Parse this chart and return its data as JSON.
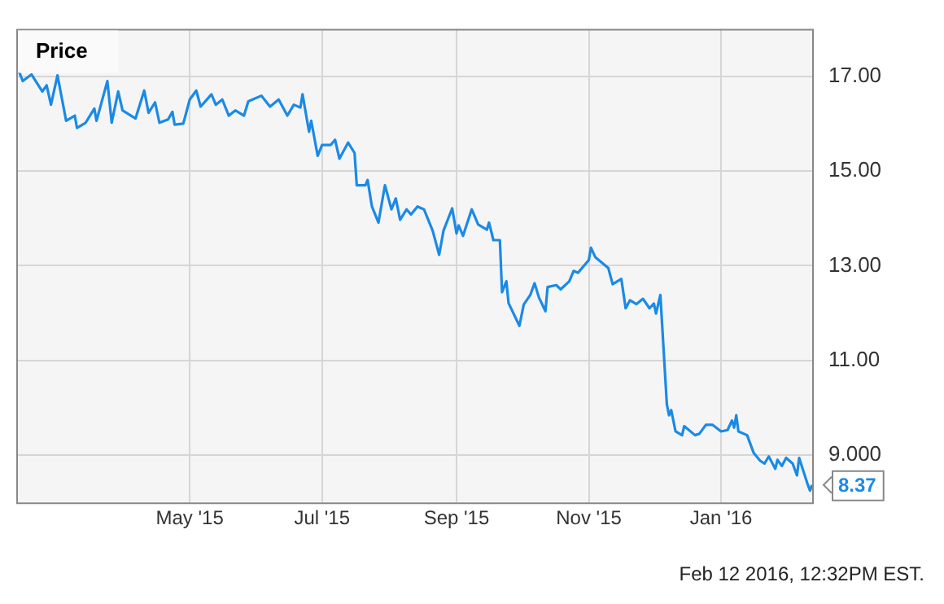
{
  "chart_data": {
    "type": "line",
    "title": "Price",
    "x": [
      "2015-02-11",
      "2015-02-13",
      "2015-02-17",
      "2015-02-22",
      "2015-02-24",
      "2015-02-26",
      "2015-03-01",
      "2015-03-05",
      "2015-03-09",
      "2015-03-10",
      "2015-03-14",
      "2015-03-18",
      "2015-03-19",
      "2015-03-24",
      "2015-03-26",
      "2015-03-29",
      "2015-03-31",
      "2015-04-06",
      "2015-04-10",
      "2015-04-12",
      "2015-04-15",
      "2015-04-17",
      "2015-04-21",
      "2015-04-23",
      "2015-04-24",
      "2015-04-28",
      "2015-05-01",
      "2015-05-04",
      "2015-05-06",
      "2015-05-11",
      "2015-05-13",
      "2015-05-16",
      "2015-05-19",
      "2015-05-22",
      "2015-05-26",
      "2015-05-28",
      "2015-06-03",
      "2015-06-07",
      "2015-06-11",
      "2015-06-15",
      "2015-06-18",
      "2015-06-21",
      "2015-06-22",
      "2015-06-25",
      "2015-06-26",
      "2015-06-29",
      "2015-07-01",
      "2015-07-05",
      "2015-07-07",
      "2015-07-09",
      "2015-07-13",
      "2015-07-16",
      "2015-07-17",
      "2015-07-21",
      "2015-07-22",
      "2015-07-24",
      "2015-07-27",
      "2015-07-30",
      "2015-08-02",
      "2015-08-04",
      "2015-08-06",
      "2015-08-09",
      "2015-08-11",
      "2015-08-14",
      "2015-08-17",
      "2015-08-21",
      "2015-08-24",
      "2015-08-26",
      "2015-08-30",
      "2015-09-01",
      "2015-09-02",
      "2015-09-04",
      "2015-09-08",
      "2015-09-11",
      "2015-09-15",
      "2015-09-16",
      "2015-09-18",
      "2015-09-21",
      "2015-09-22",
      "2015-09-24",
      "2015-09-25",
      "2015-09-30",
      "2015-10-02",
      "2015-10-05",
      "2015-10-07",
      "2015-10-09",
      "2015-10-12",
      "2015-10-13",
      "2015-10-17",
      "2015-10-19",
      "2015-10-23",
      "2015-10-25",
      "2015-10-27",
      "2015-11-01",
      "2015-11-02",
      "2015-11-04",
      "2015-11-10",
      "2015-11-12",
      "2015-11-16",
      "2015-11-18",
      "2015-11-20",
      "2015-11-23",
      "2015-11-26",
      "2015-11-29",
      "2015-12-01",
      "2015-12-02",
      "2015-12-04",
      "2015-12-07",
      "2015-12-08",
      "2015-12-09",
      "2015-12-11",
      "2015-12-14",
      "2015-12-15",
      "2015-12-20",
      "2015-12-22",
      "2015-12-25",
      "2015-12-28",
      "2016-01-01",
      "2016-01-04",
      "2016-01-06",
      "2016-01-07",
      "2016-01-08",
      "2016-01-09",
      "2016-01-13",
      "2016-01-16",
      "2016-01-19",
      "2016-01-21",
      "2016-01-23",
      "2016-01-26",
      "2016-01-27",
      "2016-01-29",
      "2016-01-31",
      "2016-02-03",
      "2016-02-05",
      "2016-02-06",
      "2016-02-10",
      "2016-02-11",
      "2016-02-12"
    ],
    "series": [
      {
        "color": "#1a8ae6",
        "values": [
          17.13,
          16.9,
          17.04,
          16.68,
          16.81,
          16.4,
          17.02,
          16.06,
          16.17,
          15.91,
          16.02,
          16.32,
          16.06,
          16.9,
          16.02,
          16.68,
          16.28,
          16.11,
          16.7,
          16.23,
          16.45,
          16.02,
          16.09,
          16.25,
          15.98,
          16.0,
          16.51,
          16.7,
          16.36,
          16.62,
          16.4,
          16.51,
          16.17,
          16.28,
          16.17,
          16.47,
          16.59,
          16.36,
          16.51,
          16.17,
          16.4,
          16.34,
          16.62,
          15.83,
          16.06,
          15.32,
          15.55,
          15.55,
          15.66,
          15.26,
          15.6,
          15.38,
          14.7,
          14.7,
          14.81,
          14.25,
          13.91,
          14.7,
          14.19,
          14.42,
          13.97,
          14.19,
          14.08,
          14.25,
          14.19,
          13.74,
          13.23,
          13.74,
          14.21,
          13.68,
          13.85,
          13.63,
          14.19,
          13.87,
          13.76,
          13.91,
          13.54,
          13.54,
          12.44,
          12.67,
          12.21,
          11.73,
          12.18,
          12.38,
          12.63,
          12.33,
          12.04,
          12.55,
          12.59,
          12.5,
          12.67,
          12.89,
          12.85,
          13.12,
          13.38,
          13.18,
          12.95,
          12.61,
          12.72,
          12.1,
          12.27,
          12.19,
          12.3,
          12.1,
          12.2,
          11.99,
          12.38,
          10.07,
          9.84,
          9.95,
          9.5,
          9.42,
          9.61,
          9.42,
          9.45,
          9.64,
          9.64,
          9.5,
          9.53,
          9.73,
          9.58,
          9.84,
          9.5,
          9.42,
          9.05,
          8.88,
          8.82,
          8.97,
          8.71,
          8.9,
          8.77,
          8.94,
          8.82,
          8.57,
          8.94,
          8.37,
          8.25,
          8.37
        ]
      }
    ],
    "xlim": [
      "2015-02-10",
      "2016-02-12"
    ],
    "xticks": [
      {
        "value": "2015-05-01",
        "label": "May '15"
      },
      {
        "value": "2015-07-01",
        "label": "Jul '15"
      },
      {
        "value": "2015-09-01",
        "label": "Sep '15"
      },
      {
        "value": "2015-11-01",
        "label": "Nov '15"
      },
      {
        "value": "2016-01-01",
        "label": "Jan '16"
      }
    ],
    "ylim": [
      8,
      18
    ],
    "yticks": [
      {
        "value": 9,
        "label": "9.000"
      },
      {
        "value": 11,
        "label": "11.00"
      },
      {
        "value": 13,
        "label": "13.00"
      },
      {
        "value": 15,
        "label": "15.00"
      },
      {
        "value": 17,
        "label": "17.00"
      }
    ],
    "grid": true,
    "legend": false,
    "marker": "none",
    "line_style": "solid",
    "annotations": [
      {
        "text": "8.37",
        "x": "2016-02-12",
        "y": 8.37
      },
      "Feb 12 2016, 12:32PM EST."
    ]
  }
}
